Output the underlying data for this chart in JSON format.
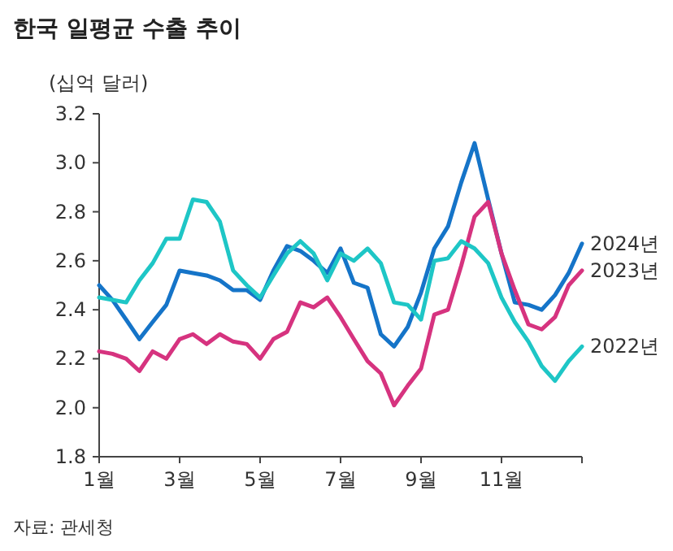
{
  "chart_data": {
    "type": "line",
    "title": "한국 일평균 수출 추이",
    "ylabel": "(십억 달러)",
    "annotations": [
      "자료: 관세청"
    ],
    "x": [
      1,
      1.33,
      1.67,
      2,
      2.33,
      2.67,
      3,
      3.33,
      3.67,
      4,
      4.33,
      4.67,
      5,
      5.33,
      5.67,
      6,
      6.33,
      6.67,
      7,
      7.33,
      7.67,
      8,
      8.33,
      8.67,
      9,
      9.33,
      9.67,
      10,
      10.33,
      10.67,
      11,
      11.33,
      11.67,
      12,
      12.33,
      12.67,
      13
    ],
    "xlim": [
      1,
      13
    ],
    "xticks": [
      {
        "value": 1,
        "label": "1월"
      },
      {
        "value": 3,
        "label": "3월"
      },
      {
        "value": 5,
        "label": "5월"
      },
      {
        "value": 7,
        "label": "7월"
      },
      {
        "value": 9,
        "label": "9월"
      },
      {
        "value": 11,
        "label": "11월"
      },
      {
        "value": 13,
        "label": null
      }
    ],
    "ylim": [
      1.8,
      3.2
    ],
    "yticks": [
      {
        "value": 1.8,
        "label": "1.8"
      },
      {
        "value": 2.0,
        "label": "2.0"
      },
      {
        "value": 2.2,
        "label": "2.2"
      },
      {
        "value": 2.4,
        "label": "2.4"
      },
      {
        "value": 2.6,
        "label": "2.6"
      },
      {
        "value": 2.8,
        "label": "2.8"
      },
      {
        "value": 3.0,
        "label": "3.0"
      },
      {
        "value": 3.2,
        "label": "3.2"
      }
    ],
    "series": [
      {
        "name": "2024년",
        "color": "#1574c8",
        "values": [
          2.5,
          2.44,
          2.36,
          2.28,
          2.35,
          2.42,
          2.56,
          2.55,
          2.54,
          2.52,
          2.48,
          2.48,
          2.44,
          2.56,
          2.66,
          2.64,
          2.6,
          2.55,
          2.65,
          2.51,
          2.49,
          2.3,
          2.25,
          2.33,
          2.47,
          2.65,
          2.74,
          2.92,
          3.08,
          2.85,
          2.63,
          2.43,
          2.42,
          2.4,
          2.46,
          2.55,
          2.67
        ]
      },
      {
        "name": "2023년",
        "color": "#d6337f",
        "values": [
          2.23,
          2.22,
          2.2,
          2.15,
          2.23,
          2.2,
          2.28,
          2.3,
          2.26,
          2.3,
          2.27,
          2.26,
          2.2,
          2.28,
          2.31,
          2.43,
          2.41,
          2.45,
          2.37,
          2.28,
          2.19,
          2.14,
          2.01,
          2.09,
          2.16,
          2.38,
          2.4,
          2.58,
          2.78,
          2.84,
          2.63,
          2.48,
          2.34,
          2.32,
          2.37,
          2.5,
          2.56
        ]
      },
      {
        "name": "2022년",
        "color": "#1ec6c6",
        "values": [
          2.45,
          2.44,
          2.43,
          2.52,
          2.59,
          2.69,
          2.69,
          2.85,
          2.84,
          2.76,
          2.56,
          2.5,
          2.45,
          2.54,
          2.63,
          2.68,
          2.63,
          2.52,
          2.63,
          2.6,
          2.65,
          2.59,
          2.43,
          2.42,
          2.36,
          2.6,
          2.61,
          2.68,
          2.65,
          2.59,
          2.45,
          2.35,
          2.27,
          2.17,
          2.11,
          2.19,
          2.25
        ]
      }
    ]
  }
}
